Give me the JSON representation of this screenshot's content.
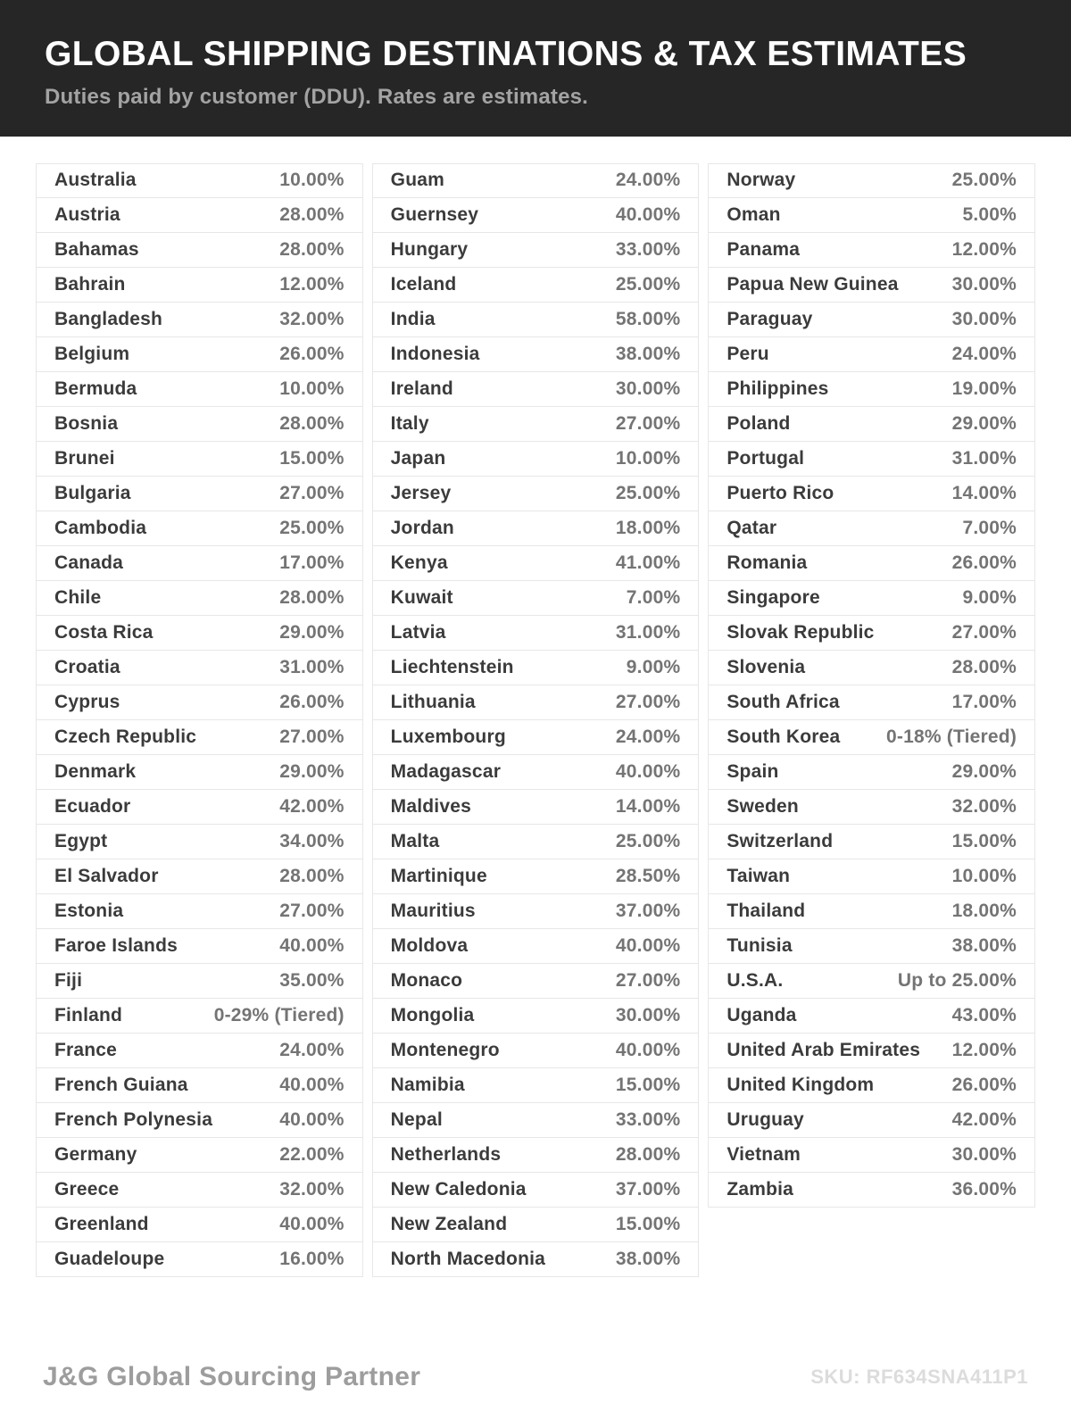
{
  "header": {
    "title": "GLOBAL SHIPPING DESTINATIONS & TAX ESTIMATES",
    "subtitle": "Duties paid by customer (DDU). Rates are estimates."
  },
  "table": {
    "columns": [
      {
        "rows": [
          {
            "country": "Australia",
            "rate": "10.00%"
          },
          {
            "country": "Austria",
            "rate": "28.00%"
          },
          {
            "country": "Bahamas",
            "rate": "28.00%"
          },
          {
            "country": "Bahrain",
            "rate": "12.00%"
          },
          {
            "country": "Bangladesh",
            "rate": "32.00%"
          },
          {
            "country": "Belgium",
            "rate": "26.00%"
          },
          {
            "country": "Bermuda",
            "rate": "10.00%"
          },
          {
            "country": "Bosnia",
            "rate": "28.00%"
          },
          {
            "country": "Brunei",
            "rate": "15.00%"
          },
          {
            "country": "Bulgaria",
            "rate": "27.00%"
          },
          {
            "country": "Cambodia",
            "rate": "25.00%"
          },
          {
            "country": "Canada",
            "rate": "17.00%"
          },
          {
            "country": "Chile",
            "rate": "28.00%"
          },
          {
            "country": "Costa Rica",
            "rate": "29.00%"
          },
          {
            "country": "Croatia",
            "rate": "31.00%"
          },
          {
            "country": "Cyprus",
            "rate": "26.00%"
          },
          {
            "country": "Czech Republic",
            "rate": "27.00%"
          },
          {
            "country": "Denmark",
            "rate": "29.00%"
          },
          {
            "country": "Ecuador",
            "rate": "42.00%"
          },
          {
            "country": "Egypt",
            "rate": "34.00%"
          },
          {
            "country": "El Salvador",
            "rate": "28.00%"
          },
          {
            "country": "Estonia",
            "rate": "27.00%"
          },
          {
            "country": "Faroe Islands",
            "rate": "40.00%"
          },
          {
            "country": "Fiji",
            "rate": "35.00%"
          },
          {
            "country": "Finland",
            "rate": "0-29% (Tiered)"
          },
          {
            "country": "France",
            "rate": "24.00%"
          },
          {
            "country": "French Guiana",
            "rate": "40.00%"
          },
          {
            "country": "French Polynesia",
            "rate": "40.00%"
          },
          {
            "country": "Germany",
            "rate": "22.00%"
          },
          {
            "country": "Greece",
            "rate": "32.00%"
          },
          {
            "country": "Greenland",
            "rate": "40.00%"
          },
          {
            "country": "Guadeloupe",
            "rate": "16.00%"
          }
        ]
      },
      {
        "rows": [
          {
            "country": "Guam",
            "rate": "24.00%"
          },
          {
            "country": "Guernsey",
            "rate": "40.00%"
          },
          {
            "country": "Hungary",
            "rate": "33.00%"
          },
          {
            "country": "Iceland",
            "rate": "25.00%"
          },
          {
            "country": "India",
            "rate": "58.00%"
          },
          {
            "country": "Indonesia",
            "rate": "38.00%"
          },
          {
            "country": "Ireland",
            "rate": "30.00%"
          },
          {
            "country": "Italy",
            "rate": "27.00%"
          },
          {
            "country": "Japan",
            "rate": "10.00%"
          },
          {
            "country": "Jersey",
            "rate": "25.00%"
          },
          {
            "country": "Jordan",
            "rate": "18.00%"
          },
          {
            "country": "Kenya",
            "rate": "41.00%"
          },
          {
            "country": "Kuwait",
            "rate": "7.00%"
          },
          {
            "country": "Latvia",
            "rate": "31.00%"
          },
          {
            "country": "Liechtenstein",
            "rate": "9.00%"
          },
          {
            "country": "Lithuania",
            "rate": "27.00%"
          },
          {
            "country": "Luxembourg",
            "rate": "24.00%"
          },
          {
            "country": "Madagascar",
            "rate": "40.00%"
          },
          {
            "country": "Maldives",
            "rate": "14.00%"
          },
          {
            "country": "Malta",
            "rate": "25.00%"
          },
          {
            "country": "Martinique",
            "rate": "28.50%"
          },
          {
            "country": "Mauritius",
            "rate": "37.00%"
          },
          {
            "country": "Moldova",
            "rate": "40.00%"
          },
          {
            "country": "Monaco",
            "rate": "27.00%"
          },
          {
            "country": "Mongolia",
            "rate": "30.00%"
          },
          {
            "country": "Montenegro",
            "rate": "40.00%"
          },
          {
            "country": "Namibia",
            "rate": "15.00%"
          },
          {
            "country": "Nepal",
            "rate": "33.00%"
          },
          {
            "country": "Netherlands",
            "rate": "28.00%"
          },
          {
            "country": "New Caledonia",
            "rate": "37.00%"
          },
          {
            "country": "New Zealand",
            "rate": "15.00%"
          },
          {
            "country": "North Macedonia",
            "rate": "38.00%"
          }
        ]
      },
      {
        "rows": [
          {
            "country": "Norway",
            "rate": "25.00%"
          },
          {
            "country": "Oman",
            "rate": "5.00%"
          },
          {
            "country": "Panama",
            "rate": "12.00%"
          },
          {
            "country": "Papua New Guinea",
            "rate": "30.00%"
          },
          {
            "country": "Paraguay",
            "rate": "30.00%"
          },
          {
            "country": "Peru",
            "rate": "24.00%"
          },
          {
            "country": "Philippines",
            "rate": "19.00%"
          },
          {
            "country": "Poland",
            "rate": "29.00%"
          },
          {
            "country": "Portugal",
            "rate": "31.00%"
          },
          {
            "country": "Puerto Rico",
            "rate": "14.00%"
          },
          {
            "country": "Qatar",
            "rate": "7.00%"
          },
          {
            "country": "Romania",
            "rate": "26.00%"
          },
          {
            "country": "Singapore",
            "rate": "9.00%"
          },
          {
            "country": "Slovak Republic",
            "rate": "27.00%"
          },
          {
            "country": "Slovenia",
            "rate": "28.00%"
          },
          {
            "country": "South Africa",
            "rate": "17.00%"
          },
          {
            "country": "South Korea",
            "rate": "0-18% (Tiered)"
          },
          {
            "country": "Spain",
            "rate": "29.00%"
          },
          {
            "country": "Sweden",
            "rate": "32.00%"
          },
          {
            "country": "Switzerland",
            "rate": "15.00%"
          },
          {
            "country": "Taiwan",
            "rate": "10.00%"
          },
          {
            "country": "Thailand",
            "rate": "18.00%"
          },
          {
            "country": "Tunisia",
            "rate": "38.00%"
          },
          {
            "country": "U.S.A.",
            "rate": "Up to 25.00%"
          },
          {
            "country": "Uganda",
            "rate": "43.00%"
          },
          {
            "country": "United Arab Emirates",
            "rate": "12.00%"
          },
          {
            "country": "United Kingdom",
            "rate": "26.00%"
          },
          {
            "country": "Uruguay",
            "rate": "42.00%"
          },
          {
            "country": "Vietnam",
            "rate": "30.00%"
          },
          {
            "country": "Zambia",
            "rate": "36.00%"
          }
        ]
      }
    ]
  },
  "footer": {
    "brand": "J&G Global Sourcing Partner",
    "sku": "SKU: RF634SNA411P1"
  },
  "colors": {
    "header_bg": "#262626",
    "title_text": "#ffffff",
    "subtitle_text": "#a3a3a3",
    "row_border": "#e7e7e7",
    "country_text": "#3b3b3b",
    "rate_text": "#747474",
    "brand_text": "#9d9d9d",
    "sku_text": "#dcdcdc"
  }
}
